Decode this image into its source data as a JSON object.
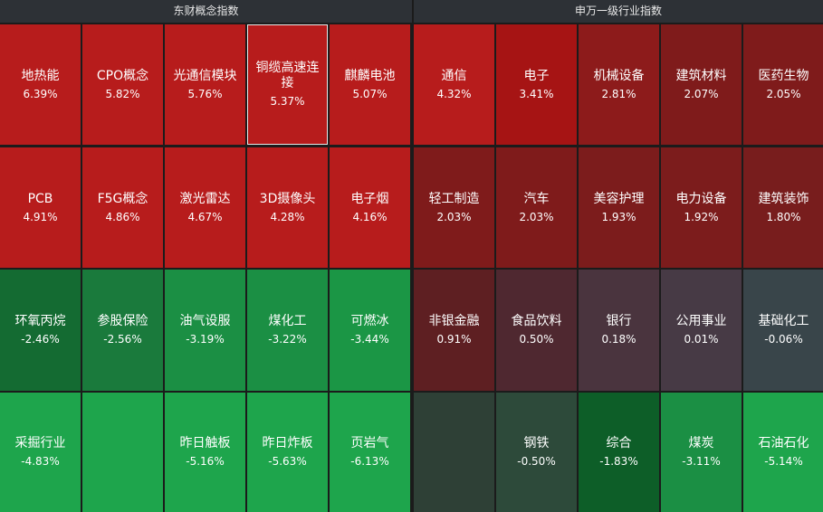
{
  "left_panel": {
    "title": "东财概念指数",
    "tiles": [
      {
        "name": "地热能",
        "value": "6.39%",
        "color": "#b71c1c"
      },
      {
        "name": "CPO概念",
        "value": "5.82%",
        "color": "#b71c1c"
      },
      {
        "name": "光通信模块",
        "value": "5.76%",
        "color": "#b71c1c"
      },
      {
        "name": "铜缆高速连接",
        "value": "5.37%",
        "color": "#b71c1c",
        "selected": true
      },
      {
        "name": "麒麟电池",
        "value": "5.07%",
        "color": "#b71c1c"
      },
      {
        "name": "PCB",
        "value": "4.91%",
        "color": "#b71c1c"
      },
      {
        "name": "F5G概念",
        "value": "4.86%",
        "color": "#b71c1c"
      },
      {
        "name": "激光雷达",
        "value": "4.67%",
        "color": "#b71c1c"
      },
      {
        "name": "3D摄像头",
        "value": "4.28%",
        "color": "#b71c1c"
      },
      {
        "name": "电子烟",
        "value": "4.16%",
        "color": "#b71c1c"
      },
      {
        "name": "环氧丙烷",
        "value": "-2.46%",
        "color": "#146b32"
      },
      {
        "name": "参股保险",
        "value": "-2.56%",
        "color": "#1a7a3c"
      },
      {
        "name": "油气设服",
        "value": "-3.19%",
        "color": "#1b8f44"
      },
      {
        "name": "煤化工",
        "value": "-3.22%",
        "color": "#1b8f44"
      },
      {
        "name": "可燃冰",
        "value": "-3.44%",
        "color": "#1b9645"
      },
      {
        "name": "采掘行业",
        "value": "-4.83%",
        "color": "#1ea54c"
      },
      {
        "name": "",
        "value": "",
        "color": "#1ea54c"
      },
      {
        "name": "昨日触板",
        "value": "-5.16%",
        "color": "#1ea54c"
      },
      {
        "name": "昨日炸板",
        "value": "-5.63%",
        "color": "#1ea54c"
      },
      {
        "name": "页岩气",
        "value": "-6.13%",
        "color": "#1ea54c"
      }
    ]
  },
  "right_panel": {
    "title": "申万一级行业指数",
    "tiles": [
      {
        "name": "通信",
        "value": "4.32%",
        "color": "#b71c1c"
      },
      {
        "name": "电子",
        "value": "3.41%",
        "color": "#a61414"
      },
      {
        "name": "机械设备",
        "value": "2.81%",
        "color": "#8d1b1b"
      },
      {
        "name": "建筑材料",
        "value": "2.07%",
        "color": "#7f1b1b"
      },
      {
        "name": "医药生物",
        "value": "2.05%",
        "color": "#7f1b1b"
      },
      {
        "name": "轻工制造",
        "value": "2.03%",
        "color": "#7f1b1b"
      },
      {
        "name": "汽车",
        "value": "2.03%",
        "color": "#7f1b1b"
      },
      {
        "name": "美容护理",
        "value": "1.93%",
        "color": "#7c1c1c"
      },
      {
        "name": "电力设备",
        "value": "1.92%",
        "color": "#7c1c1c"
      },
      {
        "name": "建筑装饰",
        "value": "1.80%",
        "color": "#781d1d"
      },
      {
        "name": "非银金融",
        "value": "0.91%",
        "color": "#5e1f22"
      },
      {
        "name": "食品饮料",
        "value": "0.50%",
        "color": "#4f2830"
      },
      {
        "name": "银行",
        "value": "0.18%",
        "color": "#4a343e"
      },
      {
        "name": "公用事业",
        "value": "0.01%",
        "color": "#473a45"
      },
      {
        "name": "基础化工",
        "value": "-0.06%",
        "color": "#39454a"
      },
      {
        "name": "",
        "value": "",
        "color": "#2e4036"
      },
      {
        "name": "钢铁",
        "value": "-0.50%",
        "color": "#2d4a3a"
      },
      {
        "name": "综合",
        "value": "-1.83%",
        "color": "#0d5e28"
      },
      {
        "name": "煤炭",
        "value": "-3.11%",
        "color": "#1b8f44"
      },
      {
        "name": "石油石化",
        "value": "-5.14%",
        "color": "#1ea54c"
      }
    ]
  }
}
